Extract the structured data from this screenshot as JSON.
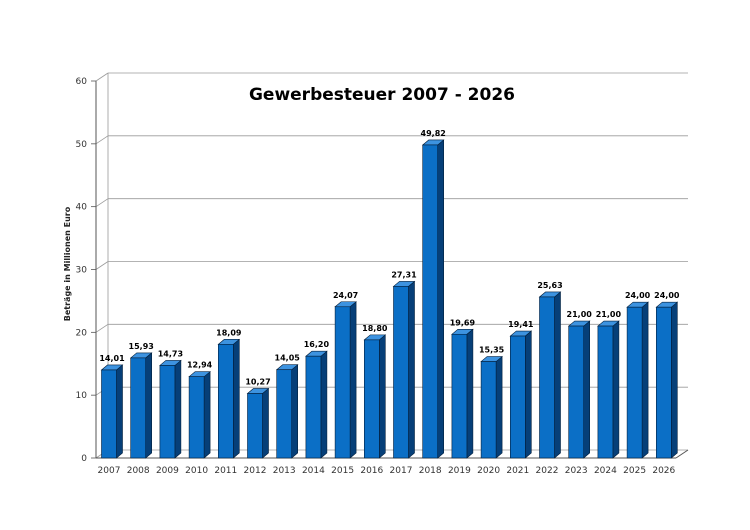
{
  "chart_data": {
    "type": "bar",
    "title": "Gewerbesteuer 2007 - 2026",
    "xlabel": "",
    "ylabel": "Beträge in Millionen Euro",
    "ylim": [
      0,
      60
    ],
    "yticks": [
      0,
      10,
      20,
      30,
      40,
      50,
      60
    ],
    "grid": true,
    "categories": [
      "2007",
      "2008",
      "2009",
      "2010",
      "2011",
      "2012",
      "2013",
      "2014",
      "2015",
      "2016",
      "2017",
      "2018",
      "2019",
      "2020",
      "2021",
      "2022",
      "2023",
      "2024",
      "2025",
      "2026"
    ],
    "values": [
      14.01,
      15.93,
      14.73,
      12.94,
      18.09,
      10.27,
      14.05,
      16.2,
      24.07,
      18.8,
      27.31,
      49.82,
      19.69,
      15.35,
      19.41,
      25.63,
      21.0,
      21.0,
      24.0,
      24.0
    ],
    "data_labels": [
      "14,01",
      "15,93",
      "14,73",
      "12,94",
      "18,09",
      "10,27",
      "14,05",
      "16,20",
      "24,07",
      "18,80",
      "27,31",
      "49,82",
      "19,69",
      "15,35",
      "19,41",
      "25,63",
      "21,00",
      "21,00",
      "24,00",
      "24,00"
    ],
    "bar_color": "#0b6fc6",
    "bar_side_color": "#063f78",
    "bar_top_color": "#3d93e0"
  }
}
